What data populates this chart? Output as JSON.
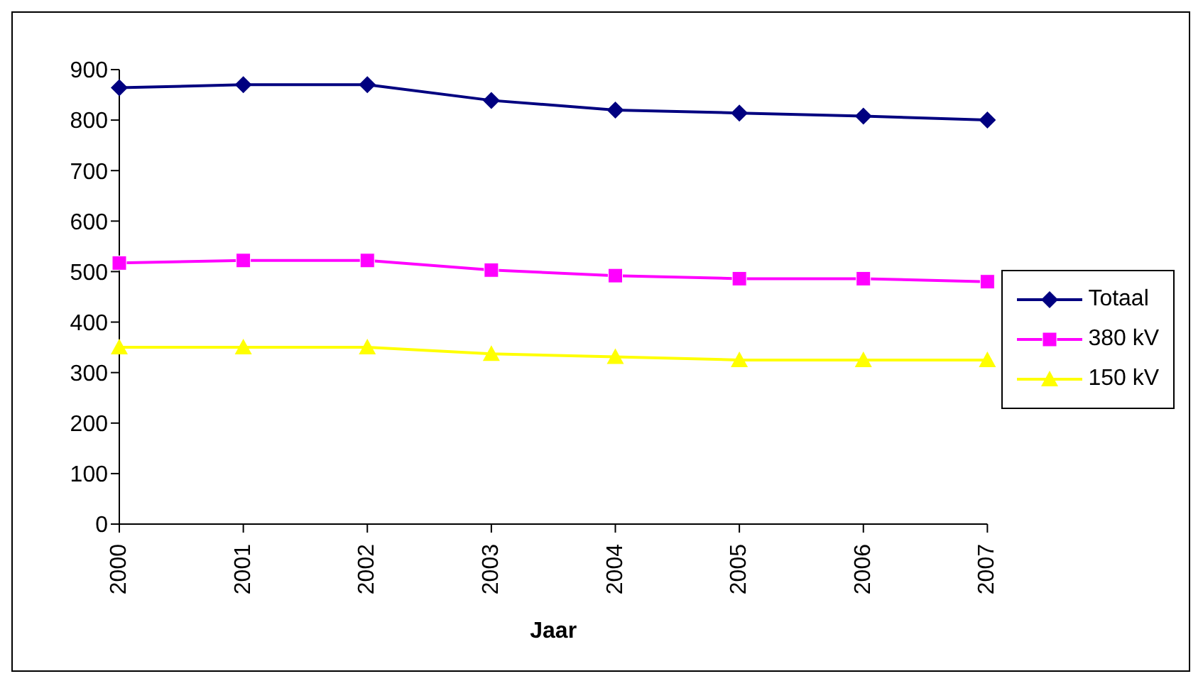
{
  "chart_data": {
    "type": "line",
    "xlabel": "Jaar",
    "categories": [
      "2000",
      "2001",
      "2002",
      "2003",
      "2004",
      "2005",
      "2006",
      "2007"
    ],
    "series": [
      {
        "name": "Totaal",
        "color": "#000080",
        "marker": "diamond",
        "values": [
          864,
          870,
          870,
          839,
          820,
          814,
          808,
          800
        ]
      },
      {
        "name": "380 kV",
        "color": "#ff00ff",
        "marker": "square",
        "values": [
          517,
          522,
          522,
          503,
          492,
          486,
          486,
          480
        ]
      },
      {
        "name": "150 kV",
        "color": "#ffff00",
        "marker": "triangle",
        "values": [
          350,
          350,
          350,
          337,
          331,
          325,
          325,
          325
        ]
      }
    ],
    "ylim": [
      0,
      900
    ],
    "yticks": [
      0,
      100,
      200,
      300,
      400,
      500,
      600,
      700,
      800,
      900
    ],
    "grid": false,
    "legend": "right"
  }
}
